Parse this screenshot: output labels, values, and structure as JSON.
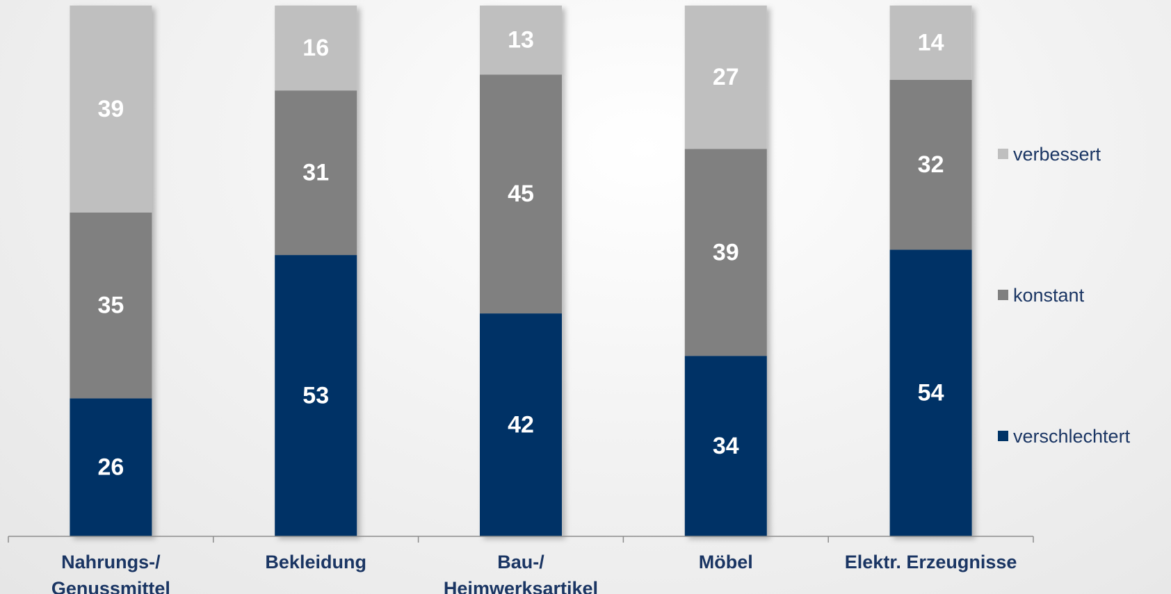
{
  "chart_data": {
    "type": "bar",
    "stacked": true,
    "orientation": "vertical",
    "categories": [
      [
        "Nahrungs-/",
        "Genussmittel"
      ],
      [
        "Bekleidung"
      ],
      [
        "Bau-/",
        "Heimwerksartikel"
      ],
      [
        "Möbel"
      ],
      [
        "Elektr. Erzeugnisse"
      ]
    ],
    "series": [
      {
        "name": "verschlechtert",
        "color": "#003366",
        "values": [
          26,
          53,
          42,
          34,
          54
        ]
      },
      {
        "name": "konstant",
        "color": "#808080",
        "values": [
          35,
          31,
          45,
          39,
          32
        ]
      },
      {
        "name": "verbessert",
        "color": "#bfbfbf",
        "values": [
          39,
          16,
          13,
          27,
          14
        ]
      }
    ],
    "legend_order": [
      "verbessert",
      "konstant",
      "verschlechtert"
    ],
    "legend_position": "right",
    "ylim": [
      0,
      100
    ],
    "grid": false,
    "title": "",
    "xlabel": "",
    "ylabel": ""
  }
}
